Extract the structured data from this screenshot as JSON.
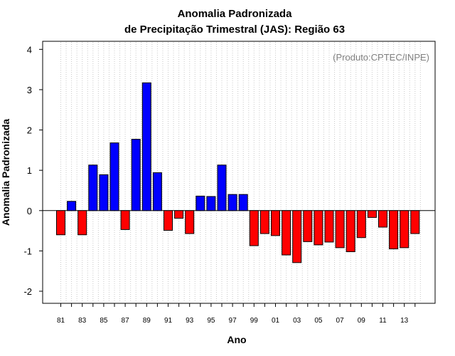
{
  "chart_data": {
    "type": "bar",
    "title": "Anomalia Padronizada",
    "subtitle": "de Precipitação Trimestral (JAS): Região 63",
    "xlabel": "Ano",
    "ylabel": "Anomalia Padronizada",
    "credit": "(Produto:CPTEC/INPE)",
    "ylim": [
      -2.3,
      4.2
    ],
    "yticks": [
      -2,
      -1,
      0,
      1,
      2,
      3,
      4
    ],
    "categories": [
      "1981",
      "1982",
      "1983",
      "1984",
      "1985",
      "1986",
      "1987",
      "1988",
      "1989",
      "1990",
      "1991",
      "1992",
      "1993",
      "1994",
      "1995",
      "1996",
      "1997",
      "1998",
      "1999",
      "2000",
      "2001",
      "2002",
      "2003",
      "2004",
      "2005",
      "2006",
      "2007",
      "2008",
      "2009",
      "2010",
      "2011",
      "2012",
      "2013",
      "2014"
    ],
    "values": [
      -0.6,
      0.23,
      -0.6,
      1.13,
      0.89,
      1.68,
      -0.47,
      1.77,
      3.17,
      0.94,
      -0.49,
      -0.19,
      -0.57,
      0.36,
      0.35,
      1.13,
      0.4,
      0.4,
      -0.87,
      -0.57,
      -0.62,
      -1.1,
      -1.29,
      -0.77,
      -0.85,
      -0.78,
      -0.92,
      -1.02,
      -0.67,
      -0.17,
      -0.41,
      -0.95,
      -0.92,
      -0.57
    ],
    "xtick_labels": [
      "81",
      "83",
      "85",
      "87",
      "89",
      "91",
      "93",
      "95",
      "97",
      "99",
      "01",
      "03",
      "05",
      "07",
      "09",
      "11",
      "13"
    ],
    "xtick_every": 2,
    "positive_color": "#0000ff",
    "negative_color": "#ff0000",
    "grid": true
  }
}
